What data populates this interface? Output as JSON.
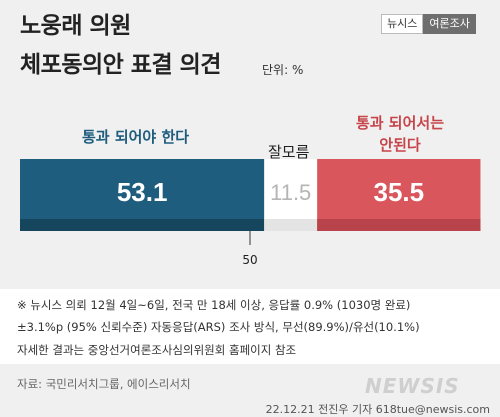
{
  "header": {
    "title_line1": "노웅래 의원",
    "title_line2": "체포동의안 표결 의견",
    "unit": "단위: %",
    "brand_left": "뉴시스",
    "brand_right": "여론조사"
  },
  "chart_data": {
    "type": "bar",
    "orientation": "horizontal-stacked-100",
    "categories": [
      "통과 되어야 한다",
      "잘모름",
      "통과 되어서는 안된다"
    ],
    "values": [
      53.1,
      11.5,
      35.5
    ],
    "value_labels": [
      "53.1",
      "11.5",
      "35.5"
    ],
    "xlim": [
      0,
      100
    ],
    "reference_line": 50,
    "reference_label": "50",
    "colors": [
      "#1f5d7e",
      "#ffffff",
      "#d9575c"
    ],
    "shade_colors": [
      "#16455e",
      "#e4e4e4",
      "#b8434a"
    ],
    "value_label_colors": [
      "#ffffff",
      "#b5b5b5",
      "#ffffff"
    ]
  },
  "labels": {
    "yes": "통과 되어야 한다",
    "unknown": "잘모름",
    "no_line1": "통과 되어서는",
    "no_line2": "안된다"
  },
  "footnote": {
    "line1": "※ 뉴시스 의뢰 12월 4일~6일, 전국 만 18세 이상, 응답률 0.9% (1030명 완료)",
    "line2": "±3.1%p (95% 신뢰수준) 자동응답(ARS) 조사 방식, 무선(89.9%)/유선(10.1%)",
    "line3": "자세한 결과는 중앙선거여론조사심의위원회 홈페이지 참조"
  },
  "source": "자료: 국민리서치그룹, 에이스리서치",
  "watermark": "NEWSIS",
  "credit": "22.12.21 전진우 기자 618tue@newsis.com"
}
